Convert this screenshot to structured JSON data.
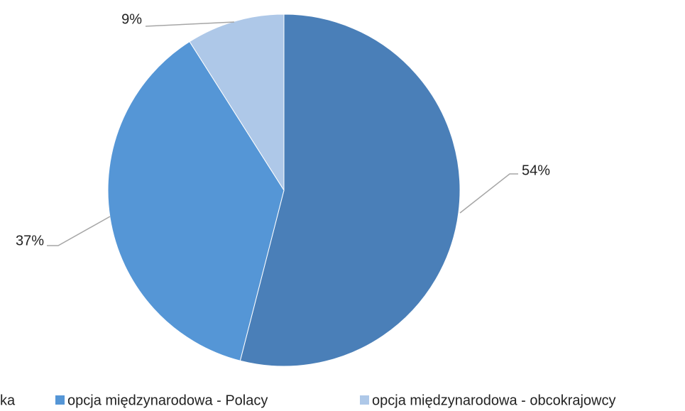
{
  "chart_data": {
    "type": "pie",
    "categories": [
      "ka",
      "opcja międzynarodowa - Polacy",
      "opcja międzynarodowa - obcokrajowcy"
    ],
    "values": [
      54,
      37,
      9
    ],
    "value_labels": [
      "54%",
      "37%",
      "9%"
    ],
    "colors": [
      "#4a7fb8",
      "#5596d6",
      "#aec8e8"
    ]
  }
}
